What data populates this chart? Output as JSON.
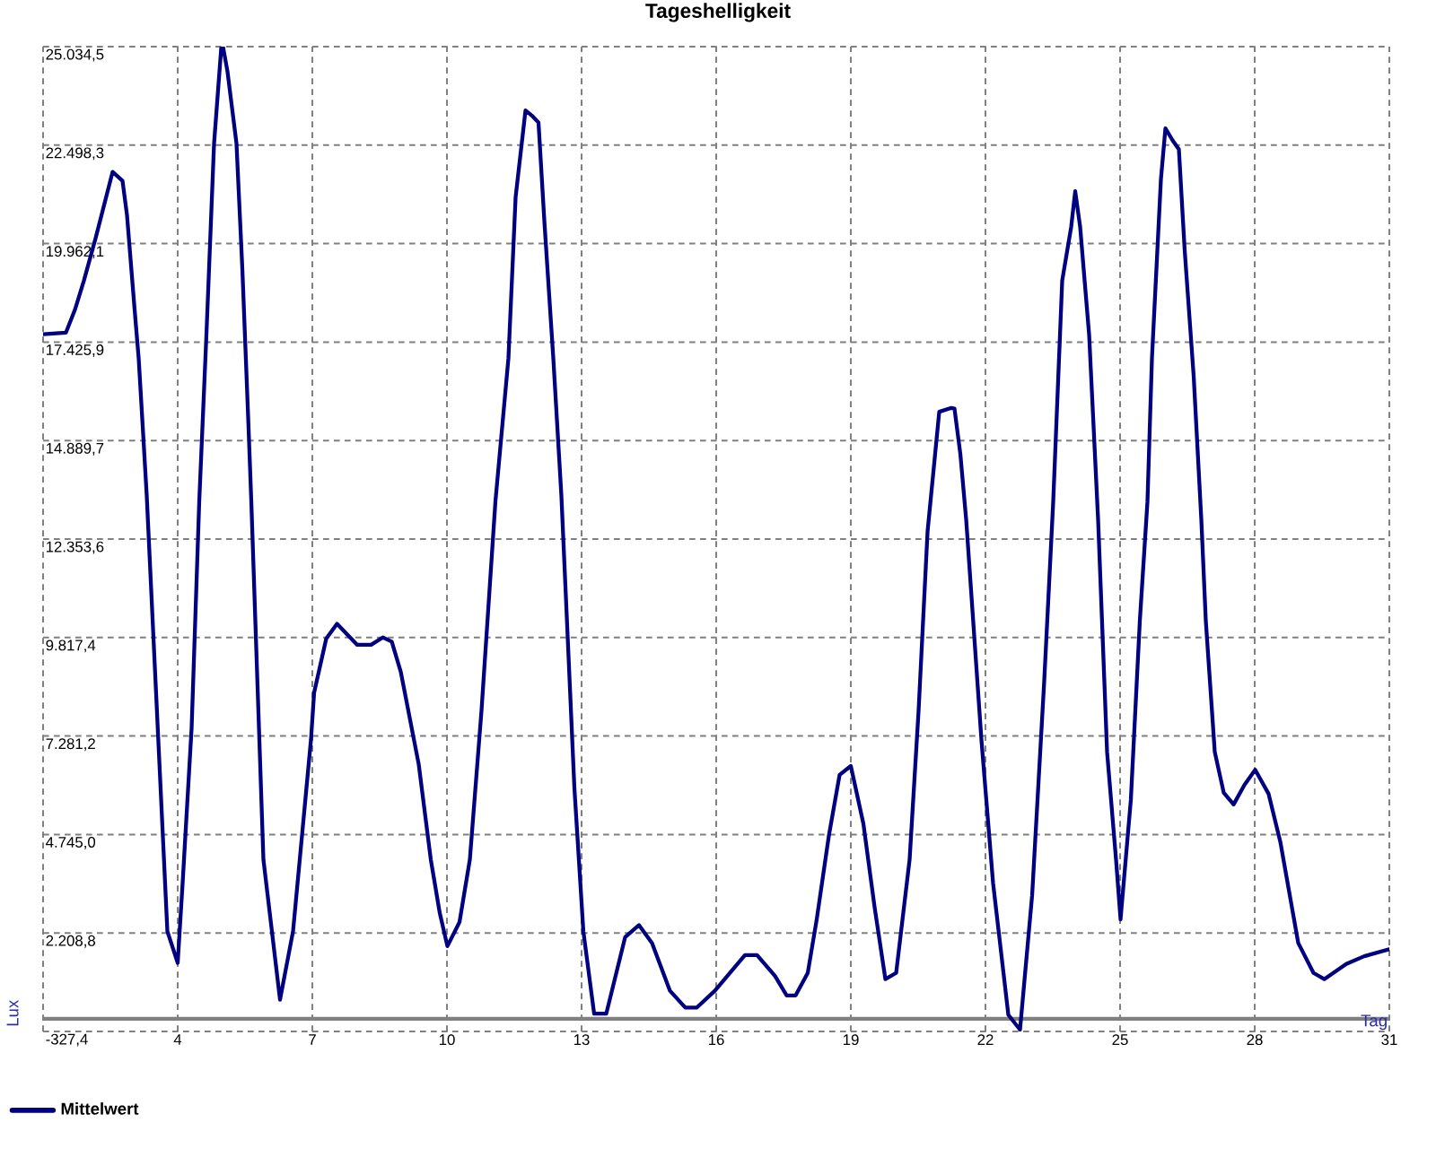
{
  "chart_data": {
    "type": "line",
    "title": "Tageshelligkeit",
    "xlabel": "Tag",
    "ylabel": "Lux",
    "x": [
      1.0,
      1.51,
      1.71,
      1.91,
      2.17,
      2.55,
      2.77,
      2.87,
      3.04,
      3.13,
      3.24,
      3.31,
      3.77,
      4.0,
      4.11,
      4.31,
      4.48,
      4.64,
      4.81,
      4.97,
      5.01,
      5.11,
      5.31,
      5.44,
      5.57,
      5.64,
      5.91,
      6.28,
      6.57,
      6.97,
      7.04,
      7.31,
      7.55,
      8.0,
      8.31,
      8.57,
      8.77,
      8.97,
      9.37,
      9.64,
      9.84,
      10.01,
      10.28,
      10.51,
      10.77,
      11.08,
      11.37,
      11.53,
      11.75,
      11.91,
      12.04,
      12.17,
      12.37,
      12.55,
      12.84,
      13.04,
      13.28,
      13.55,
      13.97,
      14.28,
      14.57,
      14.97,
      15.31,
      15.57,
      15.97,
      16.64,
      16.91,
      17.31,
      17.57,
      17.77,
      18.04,
      18.24,
      18.51,
      18.75,
      19.0,
      19.28,
      19.53,
      19.77,
      20.01,
      20.31,
      20.51,
      20.71,
      20.97,
      21.24,
      21.31,
      21.44,
      21.57,
      21.91,
      22.17,
      22.51,
      22.77,
      23.04,
      23.31,
      23.51,
      23.71,
      23.91,
      24.0,
      24.11,
      24.31,
      24.51,
      24.71,
      24.91,
      25.01,
      25.24,
      25.44,
      25.61,
      25.71,
      25.91,
      26.01,
      26.17,
      26.31,
      26.44,
      26.64,
      26.81,
      26.91,
      27.11,
      27.31,
      27.53,
      27.77,
      28.01,
      28.31,
      28.57,
      28.97,
      29.31,
      29.55,
      30.04,
      30.44,
      31.0
    ],
    "series": [
      {
        "name": "Mittelwert",
        "color": "#000080",
        "values": [
          17630,
          17670,
          18260,
          19010,
          20100,
          21810,
          21580,
          20700,
          18260,
          17010,
          14860,
          13470,
          2250,
          1440,
          3500,
          7480,
          13320,
          17620,
          22540,
          25000,
          25030,
          24390,
          22540,
          19320,
          15490,
          13320,
          4100,
          490,
          2250,
          7190,
          8400,
          9790,
          10170,
          9630,
          9630,
          9820,
          9710,
          8940,
          6560,
          4100,
          2720,
          1870,
          2490,
          4100,
          7940,
          13320,
          17010,
          21160,
          23390,
          23240,
          23080,
          20550,
          17010,
          13470,
          5940,
          2250,
          130,
          130,
          2100,
          2410,
          1950,
          720,
          290,
          290,
          720,
          1640,
          1640,
          1100,
          600,
          600,
          1180,
          2560,
          4710,
          6280,
          6510,
          5020,
          2870,
          1020,
          1180,
          4100,
          7940,
          12550,
          15630,
          15730,
          15710,
          14550,
          12860,
          7180,
          3490,
          100,
          -280,
          3180,
          8710,
          13320,
          19010,
          20390,
          21310,
          20390,
          17620,
          12860,
          6870,
          4100,
          2560,
          5640,
          10250,
          13320,
          17010,
          21620,
          22930,
          22620,
          22390,
          19780,
          16550,
          12860,
          10250,
          6870,
          5820,
          5520,
          6020,
          6410,
          5790,
          4560,
          1950,
          1180,
          1020,
          1410,
          1610,
          1790
        ]
      }
    ],
    "xlim": [
      1,
      31
    ],
    "xticks": [
      {
        "value": 1,
        "label": null
      },
      4,
      7,
      10,
      13,
      16,
      19,
      22,
      25,
      28,
      31
    ],
    "ylim": [
      -327.4,
      25034.5
    ],
    "yticks": [
      {
        "value": -327.4,
        "label": "-327,4"
      },
      {
        "value": 2208.8,
        "label": "2.208,8"
      },
      {
        "value": 4745.0,
        "label": "4.745,0"
      },
      {
        "value": 7281.2,
        "label": "7.281,2"
      },
      {
        "value": 9817.4,
        "label": "9.817,4"
      },
      {
        "value": 12353.6,
        "label": "12.353,6"
      },
      {
        "value": 14889.7,
        "label": "14.889,7"
      },
      {
        "value": 17425.9,
        "label": "17.425,9"
      },
      {
        "value": 19962.1,
        "label": "19.962,1"
      },
      {
        "value": 22498.3,
        "label": "22.498,3"
      },
      {
        "value": 25034.5,
        "label": "25.034,5"
      }
    ],
    "ref_lines": [
      {
        "axis": "y",
        "value": 0,
        "color": "#808080"
      }
    ],
    "grid": true,
    "legend": "bottom left"
  }
}
